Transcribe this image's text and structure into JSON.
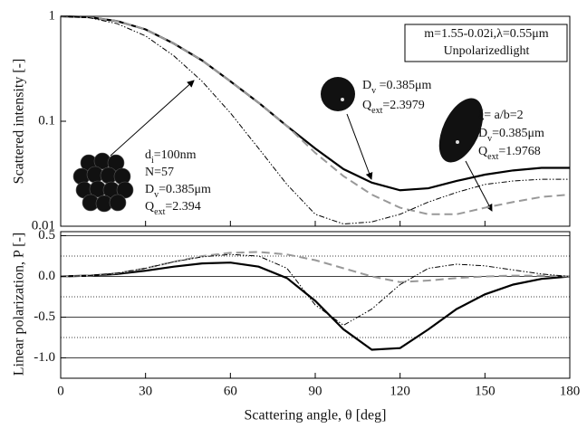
{
  "chart_data": [
    {
      "type": "line",
      "scale": "log",
      "ylabel": "Scattered intensity [-]",
      "x": [
        0,
        10,
        20,
        30,
        40,
        50,
        60,
        70,
        80,
        90,
        100,
        110,
        120,
        130,
        140,
        150,
        160,
        170,
        180
      ],
      "xlim": [
        0,
        180
      ],
      "xticks": [
        0,
        30,
        60,
        90,
        120,
        150,
        180
      ],
      "ylim": [
        0.01,
        1
      ],
      "yticks": [
        0.01,
        0.1,
        1
      ],
      "series": [
        {
          "color": "#000000",
          "dash": "solid",
          "values": [
            1,
            0.98,
            0.9,
            0.75,
            0.55,
            0.38,
            0.24,
            0.15,
            0.09,
            0.055,
            0.035,
            0.026,
            0.022,
            0.023,
            0.027,
            0.031,
            0.034,
            0.036,
            0.036
          ]
        },
        {
          "color": "#999999",
          "dash": "dashed",
          "values": [
            1,
            0.98,
            0.9,
            0.75,
            0.55,
            0.38,
            0.24,
            0.15,
            0.09,
            0.05,
            0.03,
            0.02,
            0.015,
            0.013,
            0.013,
            0.015,
            0.017,
            0.019,
            0.02
          ]
        },
        {
          "color": "#000000",
          "dash": "dash-dot-dot",
          "values": [
            1,
            0.97,
            0.85,
            0.65,
            0.42,
            0.24,
            0.12,
            0.055,
            0.025,
            0.013,
            0.0105,
            0.011,
            0.013,
            0.017,
            0.021,
            0.025,
            0.027,
            0.028,
            0.028
          ]
        }
      ],
      "notes": [
        "m=1.55-0.02i,λ=0.55μm",
        "Unpolarizedlight"
      ],
      "annotations": [
        {
          "lines": [
            [
              "d",
              "i",
              "=100nm"
            ],
            [
              "N=57"
            ],
            [
              "D",
              "v",
              "=0.385μm"
            ],
            [
              "Q",
              "ext",
              "=2.394"
            ]
          ]
        },
        {
          "lines": [
            [
              "D",
              "v",
              " =0.385μm"
            ],
            [
              "Q",
              "ext",
              "=2.3979"
            ]
          ]
        },
        {
          "lines": [
            [
              "ξ= a/b=2"
            ],
            [
              "D",
              "v",
              "=0.385μm"
            ],
            [
              "Q",
              "ext",
              "=1.9768"
            ]
          ]
        }
      ]
    },
    {
      "type": "line",
      "ylabel": "Linear polarization, P [-]",
      "xlabel": "Scattering angle, θ [deg]",
      "x": [
        0,
        10,
        20,
        30,
        40,
        50,
        60,
        70,
        80,
        90,
        100,
        110,
        120,
        130,
        140,
        150,
        160,
        170,
        180
      ],
      "xlim": [
        0,
        180
      ],
      "xticks": [
        0,
        30,
        60,
        90,
        120,
        150,
        180
      ],
      "ylim": [
        -1.25,
        0.55
      ],
      "yticks": [
        {
          "value": 0.5,
          "label": "0.5"
        },
        {
          "value": 0,
          "label": "0.0"
        },
        {
          "value": -0.5,
          "label": "-0.5"
        },
        {
          "value": -1,
          "label": "-1.0"
        }
      ],
      "yminor": [
        0.25,
        -0.25,
        -0.75
      ],
      "series": [
        {
          "color": "#000000",
          "dash": "solid",
          "values": [
            0,
            0.01,
            0.03,
            0.07,
            0.12,
            0.16,
            0.17,
            0.12,
            -0.02,
            -0.3,
            -0.65,
            -0.9,
            -0.88,
            -0.65,
            -0.4,
            -0.22,
            -0.1,
            -0.03,
            0
          ]
        },
        {
          "color": "#999999",
          "dash": "dashed",
          "values": [
            0,
            0.01,
            0.04,
            0.1,
            0.18,
            0.25,
            0.29,
            0.3,
            0.27,
            0.2,
            0.1,
            0,
            -0.07,
            -0.05,
            -0.02,
            0,
            0.01,
            0.01,
            0
          ]
        },
        {
          "color": "#000000",
          "dash": "dash-dot-dot",
          "values": [
            0,
            0.01,
            0.04,
            0.1,
            0.18,
            0.24,
            0.27,
            0.25,
            0.1,
            -0.35,
            -0.6,
            -0.4,
            -0.1,
            0.1,
            0.15,
            0.13,
            0.08,
            0.03,
            0
          ]
        }
      ]
    }
  ]
}
